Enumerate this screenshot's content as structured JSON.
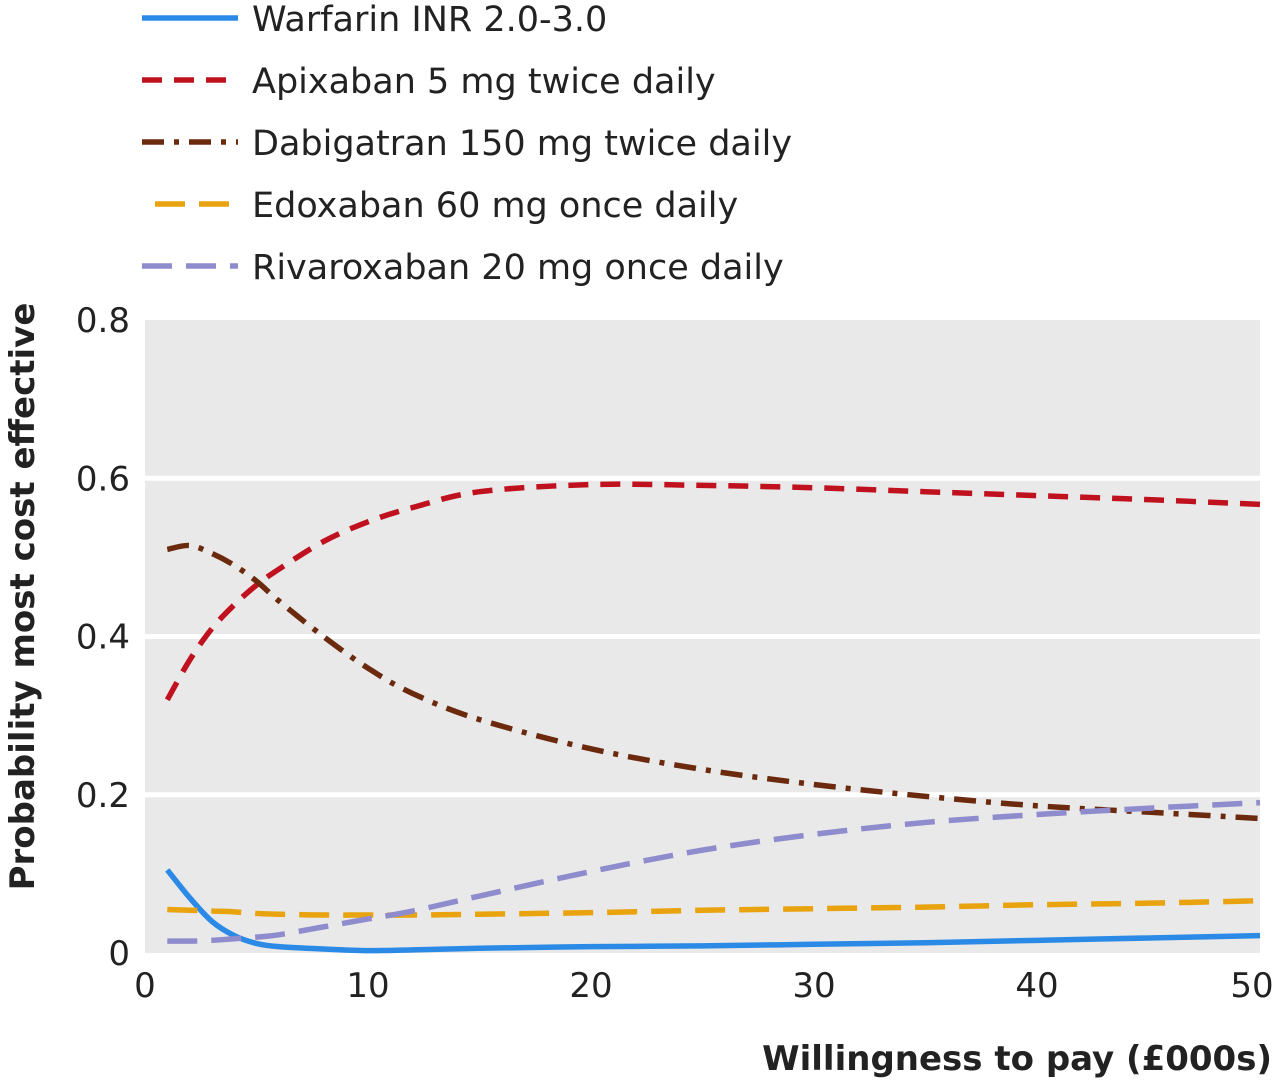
{
  "chart_data": {
    "type": "line",
    "xlabel": "Willingness to pay (£000s)",
    "ylabel": "Probability most cost effective",
    "xlim": [
      0,
      50
    ],
    "ylim": [
      0,
      0.8
    ],
    "xticks": [
      "0",
      "10",
      "20",
      "30",
      "40",
      "50"
    ],
    "yticks": [
      "0",
      "0.2",
      "0.4",
      "0.6",
      "0.8"
    ],
    "grid": "horizontal",
    "background": "#e9e9e9",
    "legend_position": "top",
    "series": [
      {
        "name": "Warfarin INR 2.0-3.0",
        "color": "#2b8ae6",
        "dash": "solid",
        "x": [
          1,
          2,
          3,
          4,
          5,
          6,
          8,
          10,
          12,
          15,
          20,
          25,
          30,
          35,
          40,
          45,
          50
        ],
        "y": [
          0.105,
          0.07,
          0.04,
          0.022,
          0.012,
          0.008,
          0.005,
          0.003,
          0.004,
          0.006,
          0.008,
          0.009,
          0.011,
          0.013,
          0.016,
          0.019,
          0.022
        ]
      },
      {
        "name": "Apixaban 5 mg twice daily",
        "color": "#c0111f",
        "dash": "dash",
        "x": [
          1,
          2,
          3,
          4,
          5,
          6,
          8,
          10,
          12,
          15,
          20,
          25,
          30,
          35,
          40,
          45,
          50
        ],
        "y": [
          0.32,
          0.37,
          0.41,
          0.44,
          0.465,
          0.485,
          0.52,
          0.545,
          0.563,
          0.583,
          0.592,
          0.591,
          0.588,
          0.583,
          0.578,
          0.573,
          0.567
        ]
      },
      {
        "name": "Dabigatran 150 mg twice daily",
        "color": "#6b2a0e",
        "dash": "dashdot",
        "x": [
          1,
          2,
          3,
          4,
          5,
          6,
          8,
          10,
          12,
          15,
          20,
          25,
          30,
          35,
          40,
          45,
          50
        ],
        "y": [
          0.51,
          0.515,
          0.505,
          0.49,
          0.47,
          0.445,
          0.4,
          0.36,
          0.328,
          0.295,
          0.258,
          0.232,
          0.213,
          0.198,
          0.186,
          0.178,
          0.17
        ]
      },
      {
        "name": "Edoxaban 60 mg once daily",
        "color": "#e8a30e",
        "dash": "longdash",
        "x": [
          1,
          2,
          3,
          4,
          5,
          6,
          8,
          10,
          12,
          15,
          20,
          25,
          30,
          35,
          40,
          45,
          50
        ],
        "y": [
          0.055,
          0.054,
          0.053,
          0.052,
          0.05,
          0.049,
          0.048,
          0.048,
          0.048,
          0.049,
          0.051,
          0.054,
          0.056,
          0.058,
          0.061,
          0.063,
          0.066
        ]
      },
      {
        "name": "Rivaroxaban 20 mg once daily",
        "color": "#8e8ccc",
        "dash": "longdash",
        "x": [
          1,
          2,
          3,
          4,
          5,
          6,
          8,
          10,
          12,
          15,
          20,
          25,
          30,
          35,
          40,
          45,
          50
        ],
        "y": [
          0.015,
          0.015,
          0.016,
          0.018,
          0.02,
          0.023,
          0.033,
          0.043,
          0.053,
          0.072,
          0.103,
          0.13,
          0.15,
          0.165,
          0.175,
          0.183,
          0.19
        ]
      }
    ]
  }
}
